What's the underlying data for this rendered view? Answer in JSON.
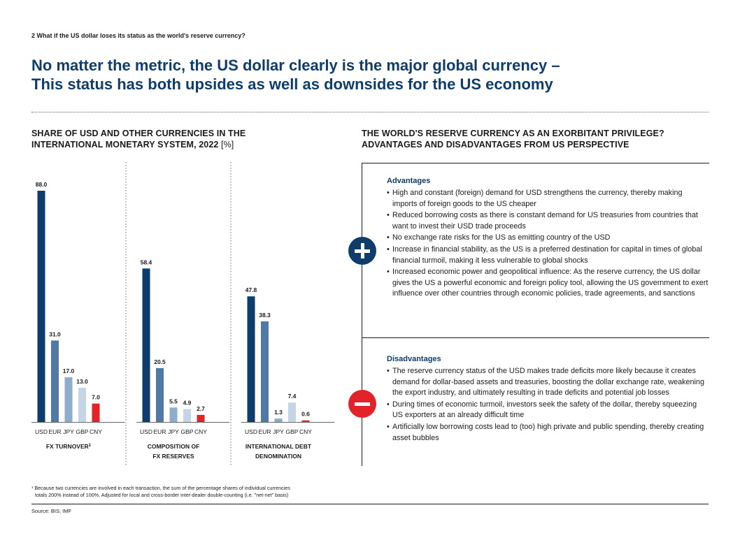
{
  "header": {
    "text": "2   What if the US dollar loses its status as the world's reserve currency?"
  },
  "title": {
    "line1": "No matter the metric, the US dollar clearly is the major global currency –",
    "line2": "This status has both upsides as well as downsides for the US economy"
  },
  "left": {
    "title_line1": "SHARE OF USD AND OTHER CURRENCIES IN THE",
    "title_line2": "INTERNATIONAL MONETARY SYSTEM, 2022",
    "title_unit": "[%]"
  },
  "right": {
    "title_line1": "THE WORLD'S RESERVE CURRENCY AS AN EXORBITANT PRIVILEGE?",
    "title_line2": "ADVANTAGES AND DISADVANTAGES FROM US PERSPECTIVE",
    "plus_icon": "plus-circle-icon",
    "minus_icon": "minus-circle-icon",
    "advantages": {
      "heading": "Advantages",
      "items": [
        "High and constant (foreign) demand for USD strengthens the currency, thereby making imports of foreign goods to the US cheaper",
        "Reduced borrowing costs as there is constant demand for US treasuries from countries that want to invest their USD trade proceeds",
        "No exchange rate risks for the US as emitting country of the USD",
        "Increase in financial stability, as the US is a preferred destination for capital in times of global financial turmoil, making it less vulnerable to global shocks",
        "Increased economic power and geopolitical influence: As the reserve currency, the US dollar gives the US a powerful economic and foreign policy tool, allowing the US government to exert influence over other countries through economic policies, trade agreements, and sanctions"
      ]
    },
    "disadvantages": {
      "heading": "Disadvantages",
      "items": [
        "The reserve currency status of the USD makes trade deficits more likely because it creates demand for dollar-based assets and treasuries, boosting the dollar exchange rate, weakening the export industry, and ultimately resulting in trade deficits and potential job losses",
        "During times of economic turmoil, investors seek the safety of the dollar, thereby squeezing US exporters at an already difficult time",
        "Artificially low borrowing costs lead to (too) high private and public spending, thereby creating asset bubbles"
      ]
    }
  },
  "chart_data": {
    "type": "bar",
    "title": "SHARE OF USD AND OTHER CURRENCIES IN THE INTERNATIONAL MONETARY SYSTEM, 2022 [%]",
    "ylim": [
      0,
      88
    ],
    "categories": [
      "USD",
      "EUR",
      "JPY",
      "GBP",
      "CNY"
    ],
    "colors": [
      "#0e3c6b",
      "#4f7aa5",
      "#8eaccb",
      "#c6d5e6",
      "#e2242a"
    ],
    "panels": [
      {
        "label_line1": "FX TURNOVER",
        "label_sup": "1",
        "label_line2": "",
        "values": [
          88.0,
          31.0,
          17.0,
          13.0,
          7.0
        ]
      },
      {
        "label_line1": "COMPOSITION OF",
        "label_sup": "",
        "label_line2": "FX RESERVES",
        "values": [
          58.4,
          20.5,
          5.5,
          4.9,
          2.7
        ]
      },
      {
        "label_line1": "INTERNATIONAL DEBT",
        "label_sup": "",
        "label_line2": "DENOMINATION",
        "values": [
          47.8,
          38.3,
          1.3,
          7.4,
          0.6
        ]
      }
    ]
  },
  "footnote": {
    "line1": "¹ Because two currencies are involved in each transaction, the sum of the percentage shares of individual currencies",
    "line2": "totals 200% instead of 100%. Adjusted for local and cross-border inter-dealer double-counting (i.e. \"net-net\" basis)"
  },
  "source": "Source: BIS; IMF"
}
